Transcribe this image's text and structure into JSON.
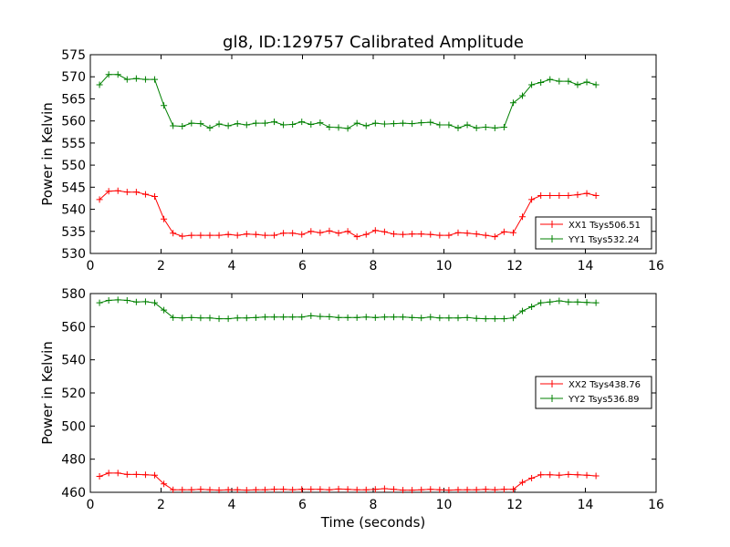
{
  "chart_data": [
    {
      "type": "line",
      "title": "gl8, ID:129757 Calibrated Amplitude",
      "xlabel": "",
      "ylabel": "Power in Kelvin",
      "xlim": [
        0,
        16
      ],
      "ylim": [
        530,
        575
      ],
      "xticks": [
        "0",
        "2",
        "4",
        "6",
        "8",
        "10",
        "12",
        "14",
        "16"
      ],
      "yticks": [
        "530",
        "535",
        "540",
        "545",
        "550",
        "555",
        "560",
        "565",
        "570",
        "575"
      ],
      "legend": "center-right",
      "series": [
        {
          "name": "XX1 Tsys506.51",
          "color": "#ff0000",
          "x": [
            0.26,
            0.52,
            0.78,
            1.04,
            1.3,
            1.56,
            1.82,
            2.08,
            2.34,
            2.6,
            2.86,
            3.12,
            3.38,
            3.64,
            3.9,
            4.16,
            4.42,
            4.68,
            4.94,
            5.2,
            5.46,
            5.72,
            5.98,
            6.24,
            6.5,
            6.76,
            7.02,
            7.28,
            7.54,
            7.8,
            8.06,
            8.32,
            8.58,
            8.84,
            9.1,
            9.36,
            9.62,
            9.88,
            10.14,
            10.4,
            10.66,
            10.92,
            11.18,
            11.44,
            11.7,
            11.96,
            12.22,
            12.48,
            12.74,
            13.0,
            13.26,
            13.52,
            13.78,
            14.04,
            14.3
          ],
          "y": [
            542.2,
            544.1,
            544.2,
            543.9,
            543.9,
            543.4,
            542.9,
            537.8,
            534.6,
            533.9,
            534.1,
            534.1,
            534.1,
            534.1,
            534.3,
            534.1,
            534.4,
            534.3,
            534.1,
            534.1,
            534.6,
            534.6,
            534.3,
            535.0,
            534.7,
            535.1,
            534.6,
            535.0,
            533.8,
            534.3,
            535.2,
            534.9,
            534.4,
            534.3,
            534.4,
            534.4,
            534.3,
            534.1,
            534.1,
            534.7,
            534.6,
            534.4,
            534.1,
            533.8,
            534.9,
            534.7,
            538.3,
            542.2,
            543.1,
            543.1,
            543.1,
            543.1,
            543.3,
            543.6,
            543.1
          ]
        },
        {
          "name": "YY1 Tsys532.24",
          "color": "#008000",
          "x": [
            0.26,
            0.52,
            0.78,
            1.04,
            1.3,
            1.56,
            1.82,
            2.08,
            2.34,
            2.6,
            2.86,
            3.12,
            3.38,
            3.64,
            3.9,
            4.16,
            4.42,
            4.68,
            4.94,
            5.2,
            5.46,
            5.72,
            5.98,
            6.24,
            6.5,
            6.76,
            7.02,
            7.28,
            7.54,
            7.8,
            8.06,
            8.32,
            8.58,
            8.84,
            9.1,
            9.36,
            9.62,
            9.88,
            10.14,
            10.4,
            10.66,
            10.92,
            11.18,
            11.44,
            11.7,
            11.96,
            12.22,
            12.48,
            12.74,
            13.0,
            13.26,
            13.52,
            13.78,
            14.04,
            14.3
          ],
          "y": [
            568.2,
            570.5,
            570.5,
            569.4,
            569.6,
            569.4,
            569.4,
            563.5,
            558.9,
            558.8,
            559.5,
            559.4,
            558.4,
            559.3,
            558.9,
            559.4,
            559.1,
            559.5,
            559.5,
            559.8,
            559.1,
            559.2,
            559.8,
            559.2,
            559.6,
            558.6,
            558.5,
            558.3,
            559.5,
            558.9,
            559.5,
            559.3,
            559.4,
            559.5,
            559.4,
            559.6,
            559.7,
            559.1,
            559.1,
            558.4,
            559.1,
            558.4,
            558.6,
            558.4,
            558.6,
            564.1,
            565.7,
            568.2,
            568.7,
            569.4,
            569.0,
            569.0,
            568.2,
            568.8,
            568.2
          ]
        }
      ]
    },
    {
      "type": "line",
      "title": "",
      "xlabel": "Time (seconds)",
      "ylabel": "Power in Kelvin",
      "xlim": [
        0,
        16
      ],
      "ylim": [
        460,
        580
      ],
      "xticks": [
        "0",
        "2",
        "4",
        "6",
        "8",
        "10",
        "12",
        "14",
        "16"
      ],
      "yticks": [
        "460",
        "480",
        "500",
        "520",
        "540",
        "560",
        "580"
      ],
      "legend": "center-right",
      "series": [
        {
          "name": "XX2 Tsys438.76",
          "color": "#ff0000",
          "x": [
            0.26,
            0.52,
            0.78,
            1.04,
            1.3,
            1.56,
            1.82,
            2.08,
            2.34,
            2.6,
            2.86,
            3.12,
            3.38,
            3.64,
            3.9,
            4.16,
            4.42,
            4.68,
            4.94,
            5.2,
            5.46,
            5.72,
            5.98,
            6.24,
            6.5,
            6.76,
            7.02,
            7.28,
            7.54,
            7.8,
            8.06,
            8.32,
            8.58,
            8.84,
            9.1,
            9.36,
            9.62,
            9.88,
            10.14,
            10.4,
            10.66,
            10.92,
            11.18,
            11.44,
            11.7,
            11.96,
            12.22,
            12.48,
            12.74,
            13.0,
            13.26,
            13.52,
            13.78,
            14.04,
            14.3
          ],
          "y": [
            469.6,
            471.6,
            471.6,
            470.8,
            470.8,
            470.6,
            470.3,
            465.1,
            461.5,
            461.5,
            461.5,
            461.8,
            461.5,
            461.3,
            461.5,
            461.5,
            461.3,
            461.5,
            461.5,
            461.8,
            461.8,
            461.5,
            461.8,
            461.8,
            461.8,
            461.5,
            462.0,
            461.8,
            461.5,
            461.5,
            461.8,
            462.2,
            461.8,
            461.3,
            461.3,
            461.5,
            461.8,
            461.5,
            461.3,
            461.5,
            461.5,
            461.5,
            461.8,
            461.5,
            461.8,
            461.8,
            466.0,
            468.5,
            470.6,
            470.6,
            470.3,
            470.8,
            470.6,
            470.3,
            469.9
          ]
        },
        {
          "name": "YY2 Tsys536.89",
          "color": "#008000",
          "x": [
            0.26,
            0.52,
            0.78,
            1.04,
            1.3,
            1.56,
            1.82,
            2.08,
            2.34,
            2.6,
            2.86,
            3.12,
            3.38,
            3.64,
            3.9,
            4.16,
            4.42,
            4.68,
            4.94,
            5.2,
            5.46,
            5.72,
            5.98,
            6.24,
            6.5,
            6.76,
            7.02,
            7.28,
            7.54,
            7.8,
            8.06,
            8.32,
            8.58,
            8.84,
            9.1,
            9.36,
            9.62,
            9.88,
            10.14,
            10.4,
            10.66,
            10.92,
            11.18,
            11.44,
            11.7,
            11.96,
            12.22,
            12.48,
            12.74,
            13.0,
            13.26,
            13.52,
            13.78,
            14.04,
            14.3
          ],
          "y": [
            574.4,
            575.9,
            576.2,
            575.9,
            574.9,
            575.1,
            574.4,
            570.0,
            565.5,
            565.3,
            565.5,
            565.3,
            565.3,
            564.8,
            564.8,
            565.3,
            565.3,
            565.5,
            565.8,
            565.8,
            565.8,
            565.8,
            565.8,
            566.6,
            566.2,
            566.0,
            565.5,
            565.5,
            565.5,
            565.8,
            565.5,
            565.8,
            565.8,
            565.8,
            565.5,
            565.3,
            565.8,
            565.3,
            565.3,
            565.3,
            565.5,
            565.0,
            564.8,
            564.8,
            564.8,
            565.3,
            569.5,
            572.0,
            574.4,
            574.9,
            575.6,
            574.9,
            574.9,
            574.6,
            574.4
          ]
        }
      ]
    }
  ]
}
